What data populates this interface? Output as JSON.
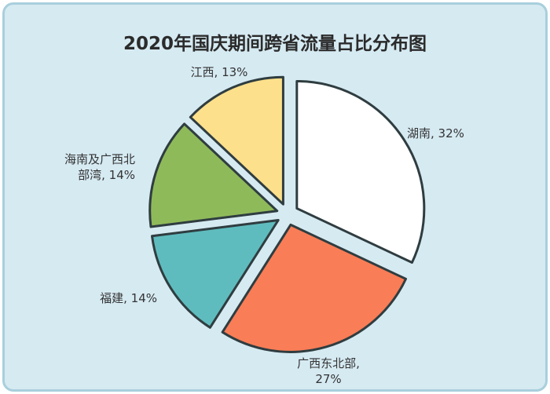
{
  "chart_data": {
    "type": "pie",
    "title": "2020年国庆期间跨省流量占比分布图",
    "slices": [
      {
        "label": "湖南, 32%",
        "lines": [
          "湖南, 32%"
        ],
        "value": 32,
        "color": "#ffffff"
      },
      {
        "label": "广西东北部, 27%",
        "lines": [
          "广西东北部,",
          "27%"
        ],
        "value": 27,
        "color": "#f97d56"
      },
      {
        "label": "福建, 14%",
        "lines": [
          "福建, 14%"
        ],
        "value": 14,
        "color": "#5fbcbe"
      },
      {
        "label": "海南及广西北部湾, 14%",
        "lines": [
          "海南及广西北",
          "部湾, 14%"
        ],
        "value": 14,
        "color": "#8fba5a"
      },
      {
        "label": "江西, 13%",
        "lines": [
          "江西, 13%"
        ],
        "value": 13,
        "color": "#fde08b"
      }
    ],
    "start_angle_deg": 0,
    "direction": "clockwise",
    "legend": "none"
  }
}
